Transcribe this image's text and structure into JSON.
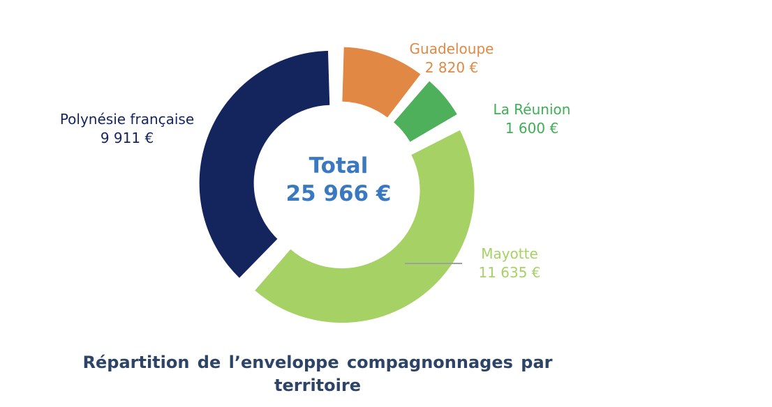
{
  "chart_data": {
    "type": "pie",
    "variant": "donut",
    "title": "Répartition de l’enveloppe compagnonnages par territoire",
    "center_label": "Total",
    "center_value": "25 966 €",
    "total": 25966,
    "slices": [
      {
        "name": "Guadeloupe",
        "value": 2820,
        "value_label": "2 820 €",
        "color": "#e08844"
      },
      {
        "name": "La Réunion",
        "value": 1600,
        "value_label": "1 600 €",
        "color": "#4fb05c"
      },
      {
        "name": "Mayotte",
        "value": 11635,
        "value_label": "11 635 €",
        "color": "#a6d164"
      },
      {
        "name": "Polynésie française",
        "value": 9911,
        "value_label": "9 911 €",
        "color": "#14255e"
      }
    ]
  }
}
